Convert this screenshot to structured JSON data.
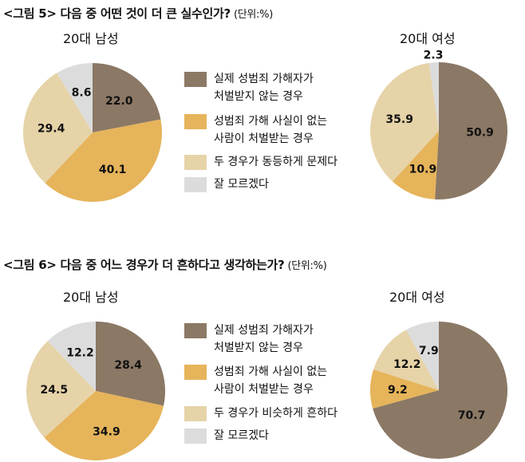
{
  "colors": {
    "actual_offender_unpunished": "#8b7865",
    "innocent_punished": "#e6b45a",
    "both_equal": "#e6d3a8",
    "dont_know": "#dcdcdc"
  },
  "figures": [
    {
      "title": "<그림 5> 다음 중 어떤 것이 더 큰 실수인가?",
      "unit": "(단위:%)",
      "legend": [
        {
          "label": "실제 성범죄 가해자가\n처벌받지 않는 경우",
          "color": "#8b7865"
        },
        {
          "label": "성범죄 가해 사실이 없는\n사람이 처벌받는 경우",
          "color": "#e6b45a"
        },
        {
          "label": "두 경우가 동등하게 문제다",
          "color": "#e6d3a8"
        },
        {
          "label": "잘 모르겠다",
          "color": "#dcdcdc"
        }
      ],
      "men_label": "20대 남성",
      "women_label": "20대 여성"
    },
    {
      "title": "<그림 6> 다음 중 어느 경우가 더 흔하다고 생각하는가?",
      "unit": "(단위:%)",
      "legend": [
        {
          "label": "실제 성범죄 가해자가\n처벌받지 않는 경우",
          "color": "#8b7865"
        },
        {
          "label": "성범죄 가해 사실이 없는\n사람이 처벌받는 경우",
          "color": "#e6b45a"
        },
        {
          "label": "두 경우가 비슷하게 흔하다",
          "color": "#e6d3a8"
        },
        {
          "label": "잘 모르겠다",
          "color": "#dcdcdc"
        }
      ],
      "men_label": "20대 남성",
      "women_label": "20대 여성"
    }
  ],
  "chart_data": [
    {
      "type": "pie",
      "title": "<그림 5> 다음 중 어떤 것이 더 큰 실수인가? - 20대 남성",
      "unit": "%",
      "categories": [
        "실제 성범죄 가해자가 처벌받지 않는 경우",
        "성범죄 가해 사실이 없는 사람이 처벌받는 경우",
        "두 경우가 동등하게 문제다",
        "잘 모르겠다"
      ],
      "values": [
        22.0,
        40.1,
        29.4,
        8.6
      ],
      "labels": [
        "22.0",
        "40.1",
        "29.4",
        "8.6"
      ],
      "colors": [
        "#8b7865",
        "#e6b45a",
        "#e6d3a8",
        "#dcdcdc"
      ],
      "start": "12 o'clock",
      "direction": "clockwise"
    },
    {
      "type": "pie",
      "title": "<그림 5> 다음 중 어떤 것이 더 큰 실수인가? - 20대 여성",
      "unit": "%",
      "categories": [
        "실제 성범죄 가해자가 처벌받지 않는 경우",
        "성범죄 가해 사실이 없는 사람이 처벌받는 경우",
        "두 경우가 동등하게 문제다",
        "잘 모르겠다"
      ],
      "values": [
        50.9,
        10.9,
        35.9,
        2.3
      ],
      "labels": [
        "50.9",
        "10.9",
        "35.9",
        "2.3"
      ],
      "colors": [
        "#8b7865",
        "#e6b45a",
        "#e6d3a8",
        "#dcdcdc"
      ],
      "start": "12 o'clock",
      "direction": "clockwise"
    },
    {
      "type": "pie",
      "title": "<그림 6> 다음 중 어느 경우가 더 흔하다고 생각하는가? - 20대 남성",
      "unit": "%",
      "categories": [
        "실제 성범죄 가해자가 처벌받지 않는 경우",
        "성범죄 가해 사실이 없는 사람이 처벌받는 경우",
        "두 경우가 비슷하게 흔하다",
        "잘 모르겠다"
      ],
      "values": [
        28.4,
        34.9,
        24.5,
        12.2
      ],
      "labels": [
        "28.4",
        "34.9",
        "24.5",
        "12.2"
      ],
      "colors": [
        "#8b7865",
        "#e6b45a",
        "#e6d3a8",
        "#dcdcdc"
      ],
      "start": "12 o'clock",
      "direction": "clockwise"
    },
    {
      "type": "pie",
      "title": "<그림 6> 다음 중 어느 경우가 더 흔하다고 생각하는가? - 20대 여성",
      "unit": "%",
      "categories": [
        "실제 성범죄 가해자가 처벌받지 않는 경우",
        "성범죄 가해 사실이 없는 사람이 처벌받는 경우",
        "두 경우가 비슷하게 흔하다",
        "잘 모르겠다"
      ],
      "values": [
        70.7,
        9.2,
        12.2,
        7.9
      ],
      "labels": [
        "70.7",
        "9.2",
        "12.2",
        "7.9"
      ],
      "colors": [
        "#8b7865",
        "#e6b45a",
        "#e6d3a8",
        "#dcdcdc"
      ],
      "start": "12 o'clock",
      "direction": "clockwise"
    }
  ]
}
